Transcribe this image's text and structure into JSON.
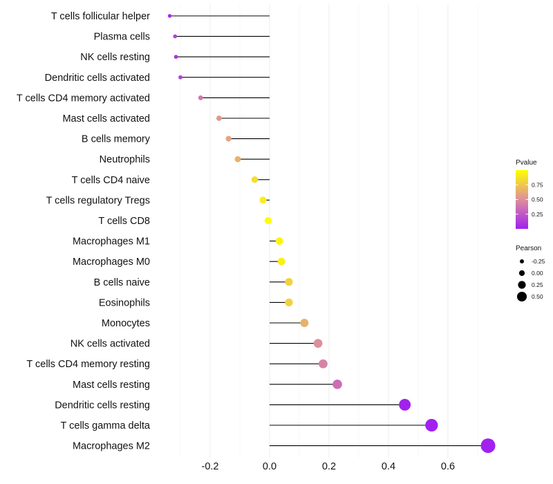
{
  "chart_data": {
    "type": "lollipop",
    "title": "",
    "xlabel": "",
    "ylabel": "",
    "xlim": [
      -0.3,
      0.75
    ],
    "x_ticks": [
      -0.2,
      0.0,
      0.2,
      0.4,
      0.6
    ],
    "x_tick_labels": [
      "-0.2",
      "0.0",
      "0.2",
      "0.4",
      "0.6"
    ],
    "categories": [
      "T cells follicular helper",
      "Plasma cells",
      "NK cells resting",
      "Dendritic cells activated",
      "T cells CD4 memory activated",
      "Mast cells activated",
      "B cells memory",
      "Neutrophils",
      "T cells CD4 naive",
      "T cells regulatory  Tregs ",
      "T cells CD8",
      "Macrophages M1",
      "Macrophages M0",
      "B cells naive",
      "Eosinophils",
      "Monocytes",
      "NK cells activated",
      "T cells CD4 memory resting",
      "Mast cells resting",
      "Dendritic cells resting",
      "T cells gamma delta",
      "Macrophages M2"
    ],
    "values": [
      -0.336,
      -0.318,
      -0.315,
      -0.3,
      -0.232,
      -0.17,
      -0.138,
      -0.107,
      -0.05,
      -0.022,
      -0.005,
      0.033,
      0.04,
      0.065,
      0.065,
      0.117,
      0.163,
      0.18,
      0.228,
      0.455,
      0.545,
      0.735
    ],
    "pvalues": [
      0.05,
      0.15,
      0.1,
      0.15,
      0.4,
      0.55,
      0.6,
      0.65,
      0.85,
      0.92,
      0.99,
      0.95,
      0.93,
      0.8,
      0.8,
      0.65,
      0.5,
      0.45,
      0.35,
      0.01,
      0.01,
      0.01
    ],
    "legend": {
      "color": {
        "title": "Pvalue",
        "ticks": [
          "0.75",
          "0.50",
          "0.25"
        ],
        "tick_values": [
          0.75,
          0.5,
          0.25
        ],
        "low_color": "#a020f0",
        "mid_color": "#dd8f9c",
        "high_color": "#ffff00"
      },
      "size": {
        "title": "Pearson",
        "labels": [
          "-0.25",
          "0.00",
          "0.25",
          "0.50"
        ],
        "values": [
          -0.25,
          0.0,
          0.25,
          0.5
        ]
      }
    },
    "stem_color": "#000000",
    "grid": true
  }
}
